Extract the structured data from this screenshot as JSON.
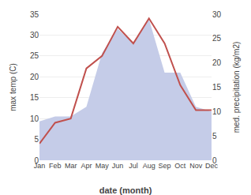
{
  "chart_data": {
    "type": "line",
    "categories": [
      "Jan",
      "Feb",
      "Mar",
      "Apr",
      "May",
      "Jun",
      "Jul",
      "Aug",
      "Sep",
      "Oct",
      "Nov",
      "Dec"
    ],
    "xlabel": "date (month)",
    "ylabel": "max temp (C)",
    "y2label": "med. precipitation (kg/m2)",
    "series": [
      {
        "type": "line",
        "color": "#c0504d",
        "values": [
          4.0,
          9.0,
          10.0,
          22.0,
          25.0,
          32.0,
          28.0,
          34.0,
          28.0,
          18.0,
          12.0,
          12.0
        ]
      },
      {
        "type": "area",
        "color": "#c5cce8",
        "axis": "y2",
        "values": [
          8.0,
          9.0,
          9.0,
          11.0,
          22.0,
          27.0,
          24.0,
          29.0,
          18.0,
          18.0,
          11.0,
          10.0
        ]
      }
    ],
    "ylim": [
      0,
      35
    ],
    "yticks": [
      0,
      5,
      10,
      15,
      20,
      25,
      30,
      35
    ],
    "y2lim": [
      0,
      30
    ],
    "y2ticks": [
      0,
      5,
      10,
      15,
      20,
      25,
      30
    ],
    "grid": true
  }
}
